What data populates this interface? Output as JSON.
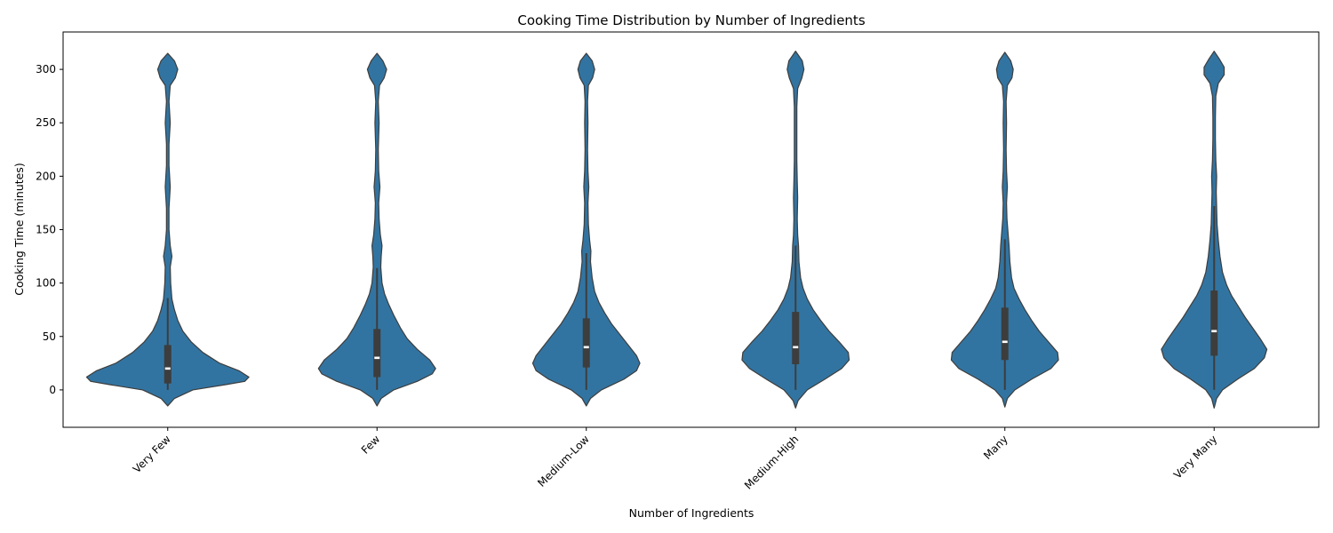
{
  "chart_data": {
    "type": "violin",
    "title": "Cooking Time Distribution by Number of Ingredients",
    "xlabel": "Number of Ingredients",
    "ylabel": "Cooking Time (minutes)",
    "ylim": [
      -35,
      335
    ],
    "yticks": [
      0,
      50,
      100,
      150,
      200,
      250,
      300
    ],
    "grid": false,
    "color": "#3274a1",
    "edge_color": "#3d3d3d",
    "categories": [
      "Very Few",
      "Few",
      "Medium-Low",
      "Medium-High",
      "Many",
      "Very Many"
    ],
    "violins": [
      {
        "category": "Very Few",
        "q1": 6,
        "median": 20,
        "q3": 42,
        "whisker_low": 0,
        "whisker_high": 86,
        "min": -15,
        "max": 315,
        "profile": [
          [
            -15,
            0.0
          ],
          [
            -8,
            0.08
          ],
          [
            0,
            0.3
          ],
          [
            5,
            0.7
          ],
          [
            8,
            0.92
          ],
          [
            12,
            0.97
          ],
          [
            18,
            0.85
          ],
          [
            25,
            0.62
          ],
          [
            35,
            0.42
          ],
          [
            45,
            0.28
          ],
          [
            55,
            0.18
          ],
          [
            65,
            0.12
          ],
          [
            75,
            0.08
          ],
          [
            85,
            0.05
          ],
          [
            100,
            0.035
          ],
          [
            115,
            0.03
          ],
          [
            125,
            0.05
          ],
          [
            135,
            0.03
          ],
          [
            150,
            0.015
          ],
          [
            170,
            0.015
          ],
          [
            190,
            0.03
          ],
          [
            210,
            0.015
          ],
          [
            230,
            0.015
          ],
          [
            250,
            0.03
          ],
          [
            270,
            0.015
          ],
          [
            285,
            0.03
          ],
          [
            292,
            0.09
          ],
          [
            300,
            0.12
          ],
          [
            308,
            0.08
          ],
          [
            315,
            0.0
          ]
        ]
      },
      {
        "category": "Few",
        "q1": 12,
        "median": 30,
        "q3": 57,
        "whisker_low": 0,
        "whisker_high": 114,
        "min": -15,
        "max": 315,
        "profile": [
          [
            -15,
            0.0
          ],
          [
            -8,
            0.05
          ],
          [
            0,
            0.2
          ],
          [
            8,
            0.48
          ],
          [
            15,
            0.66
          ],
          [
            20,
            0.7
          ],
          [
            28,
            0.63
          ],
          [
            38,
            0.48
          ],
          [
            48,
            0.36
          ],
          [
            58,
            0.28
          ],
          [
            70,
            0.2
          ],
          [
            80,
            0.14
          ],
          [
            90,
            0.09
          ],
          [
            100,
            0.06
          ],
          [
            115,
            0.045
          ],
          [
            125,
            0.05
          ],
          [
            135,
            0.06
          ],
          [
            145,
            0.04
          ],
          [
            160,
            0.025
          ],
          [
            175,
            0.02
          ],
          [
            190,
            0.035
          ],
          [
            205,
            0.02
          ],
          [
            225,
            0.015
          ],
          [
            250,
            0.025
          ],
          [
            270,
            0.015
          ],
          [
            285,
            0.03
          ],
          [
            292,
            0.085
          ],
          [
            300,
            0.115
          ],
          [
            308,
            0.07
          ],
          [
            315,
            0.0
          ]
        ]
      },
      {
        "category": "Medium-Low",
        "q1": 21,
        "median": 40,
        "q3": 67,
        "whisker_low": 0,
        "whisker_high": 128,
        "min": -15,
        "max": 315,
        "profile": [
          [
            -15,
            0.0
          ],
          [
            -8,
            0.05
          ],
          [
            0,
            0.18
          ],
          [
            10,
            0.45
          ],
          [
            18,
            0.6
          ],
          [
            25,
            0.64
          ],
          [
            32,
            0.6
          ],
          [
            42,
            0.5
          ],
          [
            52,
            0.4
          ],
          [
            62,
            0.3
          ],
          [
            72,
            0.22
          ],
          [
            82,
            0.15
          ],
          [
            92,
            0.1
          ],
          [
            105,
            0.07
          ],
          [
            120,
            0.05
          ],
          [
            130,
            0.055
          ],
          [
            140,
            0.04
          ],
          [
            155,
            0.025
          ],
          [
            175,
            0.02
          ],
          [
            190,
            0.03
          ],
          [
            205,
            0.02
          ],
          [
            225,
            0.015
          ],
          [
            250,
            0.02
          ],
          [
            270,
            0.015
          ],
          [
            285,
            0.025
          ],
          [
            292,
            0.075
          ],
          [
            300,
            0.1
          ],
          [
            308,
            0.07
          ],
          [
            315,
            0.0
          ]
        ]
      },
      {
        "category": "Medium-High",
        "q1": 24,
        "median": 40,
        "q3": 73,
        "whisker_low": 0,
        "whisker_high": 135,
        "min": -17,
        "max": 317,
        "profile": [
          [
            -17,
            0.0
          ],
          [
            -10,
            0.03
          ],
          [
            0,
            0.14
          ],
          [
            10,
            0.35
          ],
          [
            20,
            0.55
          ],
          [
            28,
            0.64
          ],
          [
            35,
            0.63
          ],
          [
            45,
            0.52
          ],
          [
            55,
            0.4
          ],
          [
            65,
            0.3
          ],
          [
            75,
            0.21
          ],
          [
            85,
            0.14
          ],
          [
            95,
            0.09
          ],
          [
            105,
            0.06
          ],
          [
            120,
            0.04
          ],
          [
            135,
            0.035
          ],
          [
            145,
            0.025
          ],
          [
            160,
            0.02
          ],
          [
            180,
            0.025
          ],
          [
            195,
            0.02
          ],
          [
            215,
            0.015
          ],
          [
            240,
            0.015
          ],
          [
            265,
            0.015
          ],
          [
            282,
            0.025
          ],
          [
            292,
            0.075
          ],
          [
            300,
            0.1
          ],
          [
            308,
            0.08
          ],
          [
            317,
            0.0
          ]
        ]
      },
      {
        "category": "Many",
        "q1": 28,
        "median": 45,
        "q3": 77,
        "whisker_low": 0,
        "whisker_high": 141,
        "min": -16,
        "max": 316,
        "profile": [
          [
            -16,
            0.0
          ],
          [
            -8,
            0.03
          ],
          [
            0,
            0.12
          ],
          [
            10,
            0.32
          ],
          [
            20,
            0.55
          ],
          [
            28,
            0.64
          ],
          [
            35,
            0.63
          ],
          [
            45,
            0.52
          ],
          [
            55,
            0.41
          ],
          [
            65,
            0.32
          ],
          [
            75,
            0.24
          ],
          [
            85,
            0.17
          ],
          [
            95,
            0.11
          ],
          [
            105,
            0.08
          ],
          [
            120,
            0.06
          ],
          [
            135,
            0.05
          ],
          [
            145,
            0.04
          ],
          [
            160,
            0.025
          ],
          [
            175,
            0.02
          ],
          [
            190,
            0.03
          ],
          [
            205,
            0.02
          ],
          [
            225,
            0.015
          ],
          [
            250,
            0.02
          ],
          [
            270,
            0.015
          ],
          [
            285,
            0.03
          ],
          [
            292,
            0.085
          ],
          [
            300,
            0.1
          ],
          [
            308,
            0.07
          ],
          [
            316,
            0.0
          ]
        ]
      },
      {
        "category": "Very Many",
        "q1": 32,
        "median": 55,
        "q3": 93,
        "whisker_low": 0,
        "whisker_high": 172,
        "min": -17,
        "max": 317,
        "profile": [
          [
            -17,
            0.0
          ],
          [
            -8,
            0.03
          ],
          [
            0,
            0.1
          ],
          [
            10,
            0.28
          ],
          [
            20,
            0.48
          ],
          [
            30,
            0.6
          ],
          [
            38,
            0.63
          ],
          [
            48,
            0.55
          ],
          [
            58,
            0.46
          ],
          [
            68,
            0.37
          ],
          [
            78,
            0.29
          ],
          [
            88,
            0.21
          ],
          [
            98,
            0.15
          ],
          [
            110,
            0.1
          ],
          [
            125,
            0.07
          ],
          [
            140,
            0.05
          ],
          [
            155,
            0.035
          ],
          [
            170,
            0.03
          ],
          [
            185,
            0.025
          ],
          [
            200,
            0.03
          ],
          [
            215,
            0.02
          ],
          [
            235,
            0.015
          ],
          [
            255,
            0.015
          ],
          [
            275,
            0.02
          ],
          [
            287,
            0.05
          ],
          [
            295,
            0.12
          ],
          [
            302,
            0.12
          ],
          [
            310,
            0.06
          ],
          [
            317,
            0.0
          ]
        ]
      }
    ]
  }
}
